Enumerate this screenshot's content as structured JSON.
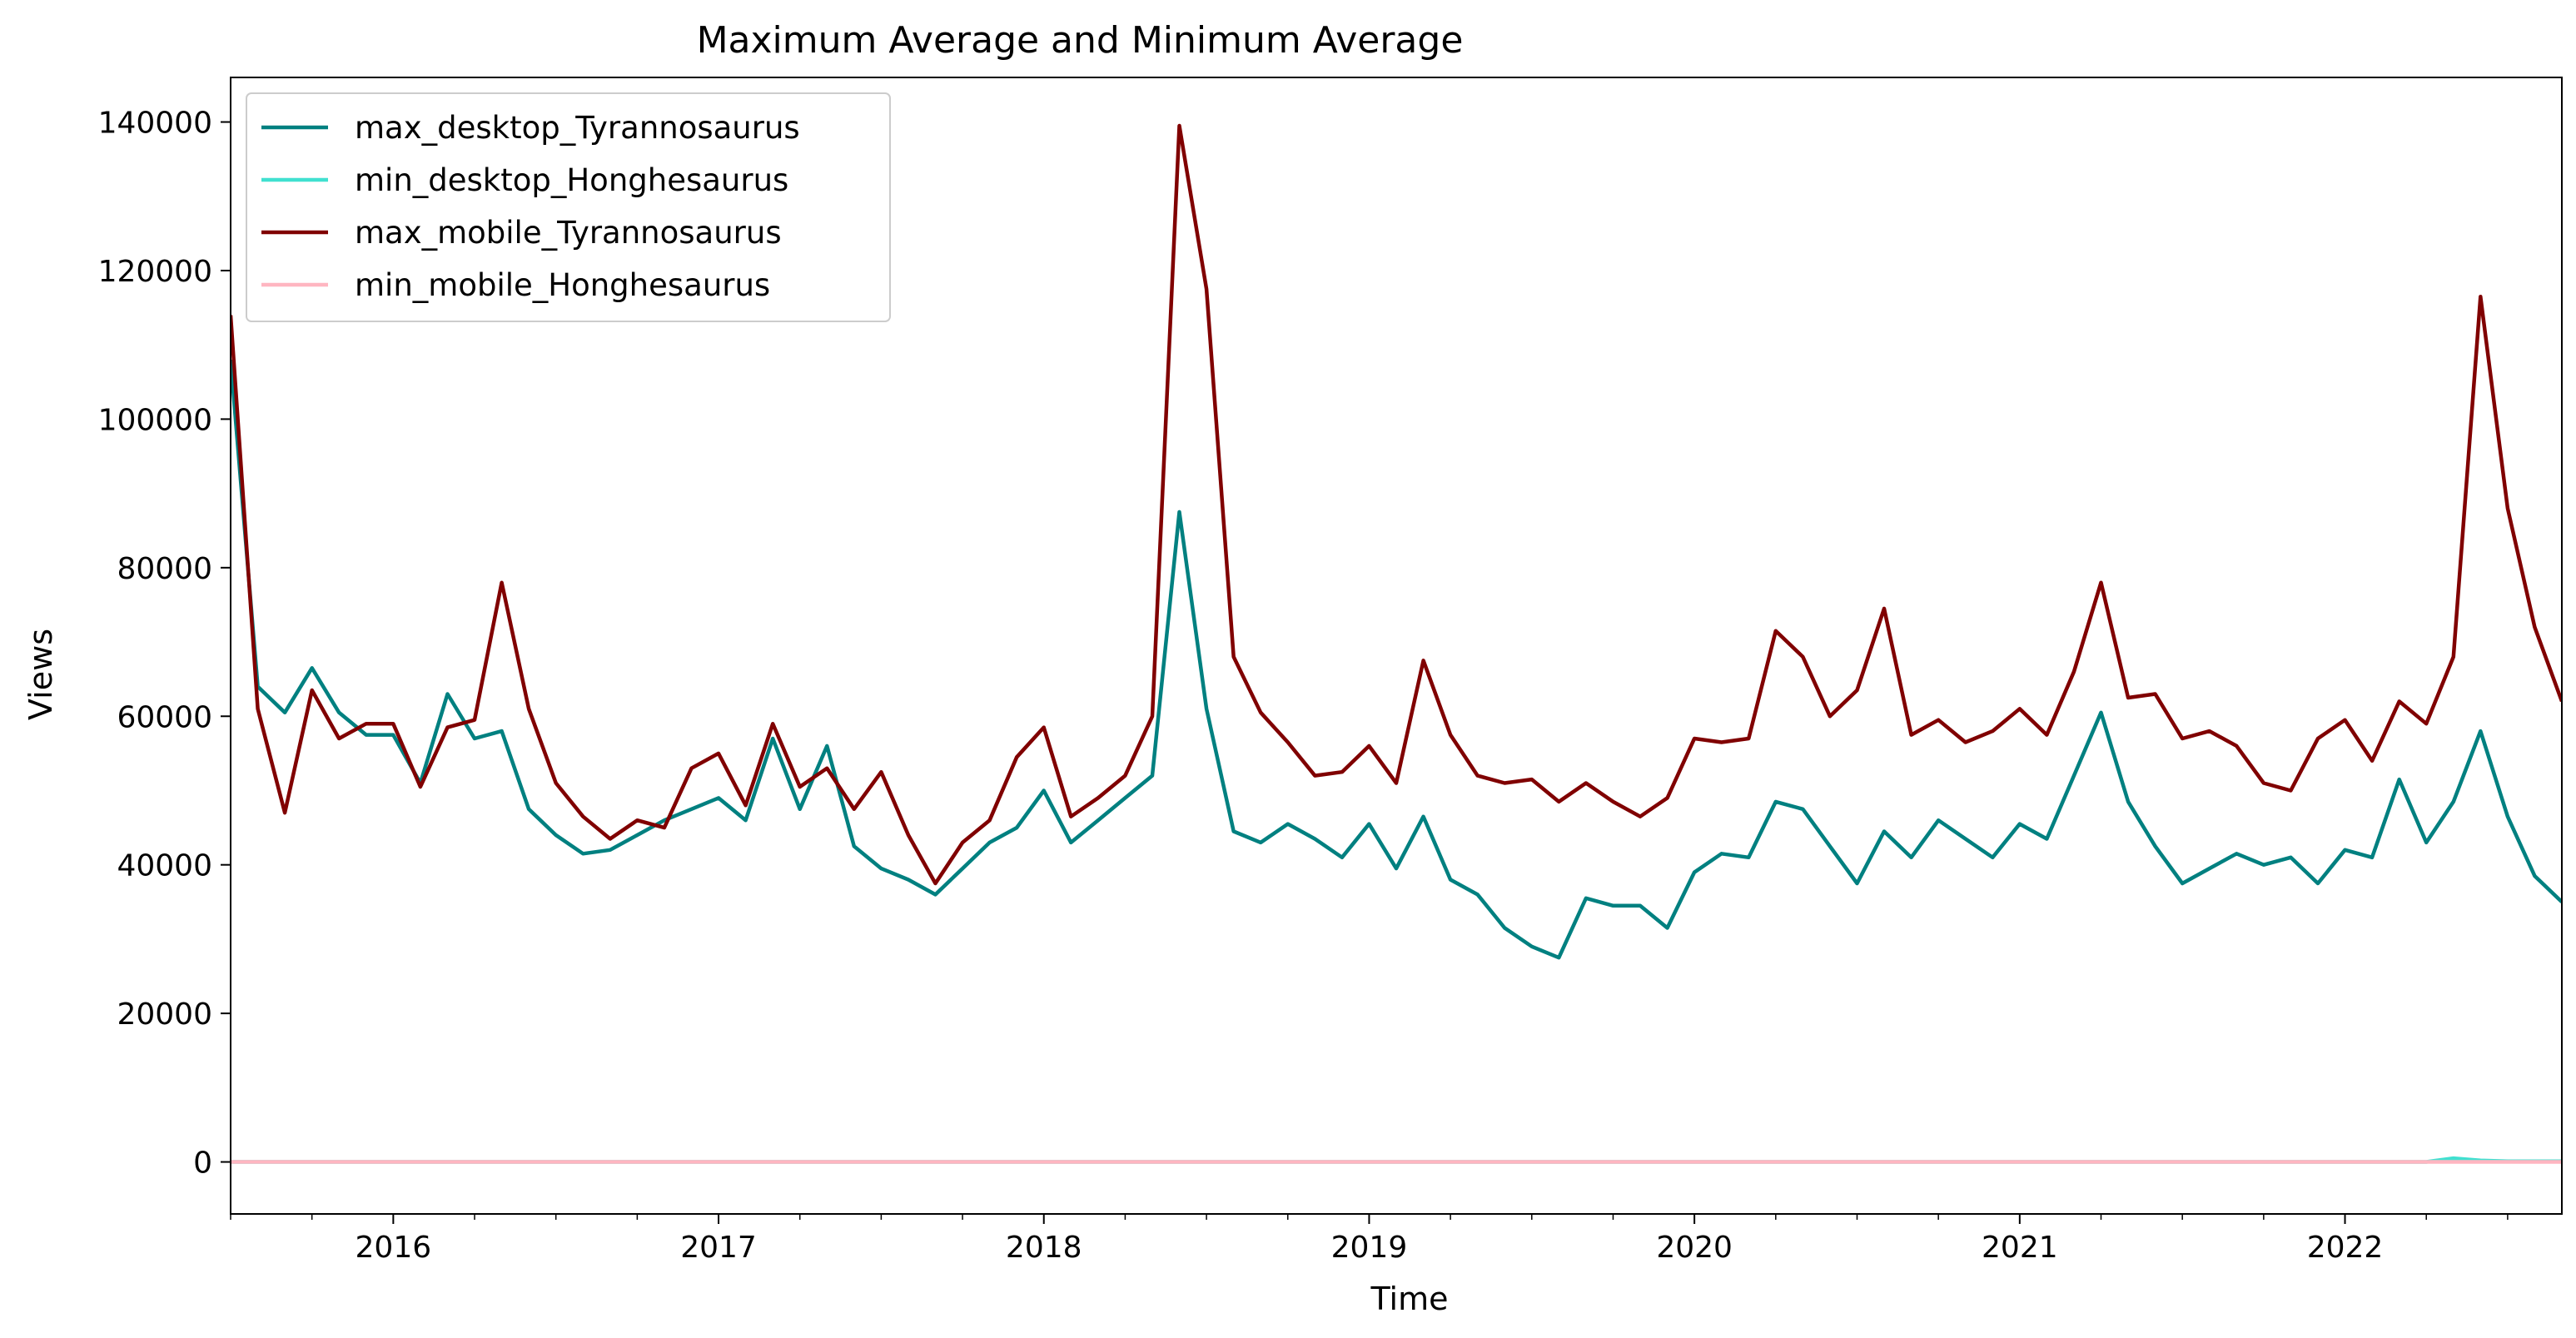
{
  "chart_data": {
    "type": "line",
    "title": "Maximum Average and Minimum Average",
    "xlabel": "Time",
    "ylabel": "Views",
    "ylim": [
      -7000,
      146000
    ],
    "xlim": [
      "2015-07",
      "2022-09"
    ],
    "yticks": [
      0,
      20000,
      40000,
      60000,
      80000,
      100000,
      120000,
      140000
    ],
    "ytick_labels": [
      "0",
      "20000",
      "40000",
      "60000",
      "80000",
      "100000",
      "120000",
      "140000"
    ],
    "xticks": [
      "2016-01",
      "2017-01",
      "2018-01",
      "2019-01",
      "2020-01",
      "2021-01",
      "2022-01"
    ],
    "xtick_labels": [
      "2016",
      "2017",
      "2018",
      "2019",
      "2020",
      "2021",
      "2022"
    ],
    "grid": false,
    "legend_position": "upper-left",
    "x": [
      "2015-07",
      "2015-08",
      "2015-09",
      "2015-10",
      "2015-11",
      "2015-12",
      "2016-01",
      "2016-02",
      "2016-03",
      "2016-04",
      "2016-05",
      "2016-06",
      "2016-07",
      "2016-08",
      "2016-09",
      "2016-10",
      "2016-11",
      "2016-12",
      "2017-01",
      "2017-02",
      "2017-03",
      "2017-04",
      "2017-05",
      "2017-06",
      "2017-07",
      "2017-08",
      "2017-09",
      "2017-10",
      "2017-11",
      "2017-12",
      "2018-01",
      "2018-02",
      "2018-03",
      "2018-04",
      "2018-05",
      "2018-06",
      "2018-07",
      "2018-08",
      "2018-09",
      "2018-10",
      "2018-11",
      "2018-12",
      "2019-01",
      "2019-02",
      "2019-03",
      "2019-04",
      "2019-05",
      "2019-06",
      "2019-07",
      "2019-08",
      "2019-09",
      "2019-10",
      "2019-11",
      "2019-12",
      "2020-01",
      "2020-02",
      "2020-03",
      "2020-04",
      "2020-05",
      "2020-06",
      "2020-07",
      "2020-08",
      "2020-09",
      "2020-10",
      "2020-11",
      "2020-12",
      "2021-01",
      "2021-02",
      "2021-03",
      "2021-04",
      "2021-05",
      "2021-06",
      "2021-07",
      "2021-08",
      "2021-09",
      "2021-10",
      "2021-11",
      "2021-12",
      "2022-01",
      "2022-02",
      "2022-03",
      "2022-04",
      "2022-05",
      "2022-06",
      "2022-07",
      "2022-08",
      "2022-09"
    ],
    "series": [
      {
        "name": "max_desktop_Tyrannosaurus",
        "color": "#008080",
        "values": [
          108000,
          64000,
          60500,
          66500,
          60500,
          57500,
          57500,
          51000,
          63000,
          57000,
          58000,
          47500,
          44000,
          41500,
          42000,
          44000,
          46000,
          47500,
          49000,
          46000,
          57000,
          47500,
          56000,
          42500,
          39500,
          38000,
          36000,
          39500,
          43000,
          45000,
          50000,
          43000,
          46000,
          49000,
          52000,
          87500,
          61000,
          44500,
          43000,
          45500,
          43500,
          41000,
          45500,
          39500,
          46500,
          38000,
          36000,
          31500,
          29000,
          27500,
          35500,
          34500,
          34500,
          31500,
          39000,
          41500,
          41000,
          48500,
          47500,
          42500,
          37500,
          44500,
          41000,
          46000,
          43500,
          41000,
          45500,
          43500,
          52000,
          60500,
          48500,
          42500,
          37500,
          39500,
          41500,
          40000,
          41000,
          37500,
          42000,
          41000,
          51500,
          43000,
          48500,
          58000,
          46500,
          38500,
          35000
        ]
      },
      {
        "name": "min_desktop_Honghesaurus",
        "color": "#40e0d0",
        "values": [
          0,
          0,
          0,
          0,
          0,
          0,
          0,
          0,
          0,
          0,
          0,
          0,
          0,
          0,
          0,
          0,
          0,
          0,
          0,
          0,
          0,
          0,
          0,
          0,
          0,
          0,
          0,
          0,
          0,
          0,
          0,
          0,
          0,
          0,
          0,
          0,
          0,
          0,
          0,
          0,
          0,
          0,
          0,
          0,
          0,
          0,
          0,
          0,
          0,
          0,
          0,
          0,
          0,
          0,
          0,
          0,
          0,
          0,
          0,
          0,
          0,
          0,
          0,
          0,
          0,
          0,
          0,
          0,
          0,
          0,
          0,
          0,
          0,
          0,
          0,
          0,
          0,
          0,
          0,
          0,
          0,
          0,
          500,
          200,
          100,
          100,
          100
        ]
      },
      {
        "name": "max_mobile_Tyrannosaurus",
        "color": "#800000",
        "values": [
          114000,
          61000,
          47000,
          63500,
          57000,
          59000,
          59000,
          50500,
          58500,
          59500,
          78000,
          61000,
          51000,
          46500,
          43500,
          46000,
          45000,
          53000,
          55000,
          48000,
          59000,
          50500,
          53000,
          47500,
          52500,
          44000,
          37500,
          43000,
          46000,
          54500,
          58500,
          46500,
          49000,
          52000,
          60000,
          139500,
          117500,
          68000,
          60500,
          56500,
          52000,
          52500,
          56000,
          51000,
          67500,
          57500,
          52000,
          51000,
          51500,
          48500,
          51000,
          48500,
          46500,
          49000,
          57000,
          56500,
          57000,
          71500,
          68000,
          60000,
          63500,
          74500,
          57500,
          59500,
          56500,
          58000,
          61000,
          57500,
          66000,
          78000,
          62500,
          63000,
          57000,
          58000,
          56000,
          51000,
          50000,
          57000,
          59500,
          54000,
          62000,
          59000,
          68000,
          116500,
          88000,
          72000,
          62000
        ]
      },
      {
        "name": "min_mobile_Honghesaurus",
        "color": "#ffb6c1",
        "values": [
          0,
          0,
          0,
          0,
          0,
          0,
          0,
          0,
          0,
          0,
          0,
          0,
          0,
          0,
          0,
          0,
          0,
          0,
          0,
          0,
          0,
          0,
          0,
          0,
          0,
          0,
          0,
          0,
          0,
          0,
          0,
          0,
          0,
          0,
          0,
          0,
          0,
          0,
          0,
          0,
          0,
          0,
          0,
          0,
          0,
          0,
          0,
          0,
          0,
          0,
          0,
          0,
          0,
          0,
          0,
          0,
          0,
          0,
          0,
          0,
          0,
          0,
          0,
          0,
          0,
          0,
          0,
          0,
          0,
          0,
          0,
          0,
          0,
          0,
          0,
          0,
          0,
          0,
          0,
          0,
          0,
          0,
          0,
          0,
          0,
          0,
          0
        ]
      }
    ]
  }
}
